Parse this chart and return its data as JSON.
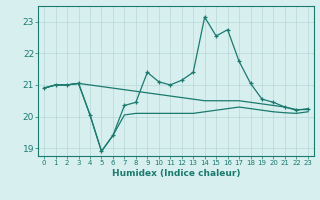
{
  "xlabel": "Humidex (Indice chaleur)",
  "x": [
    0,
    1,
    2,
    3,
    4,
    5,
    6,
    7,
    8,
    9,
    10,
    11,
    12,
    13,
    14,
    15,
    16,
    17,
    18,
    19,
    20,
    21,
    22,
    23
  ],
  "line_main": [
    20.9,
    21.0,
    21.0,
    21.05,
    20.05,
    18.9,
    19.4,
    20.35,
    20.45,
    21.4,
    21.1,
    21.0,
    21.15,
    21.4,
    23.15,
    22.55,
    22.75,
    21.75,
    21.05,
    20.55,
    20.45,
    20.3,
    20.2,
    20.25
  ],
  "line_upper": [
    20.9,
    21.0,
    21.0,
    21.05,
    21.0,
    20.95,
    20.9,
    20.85,
    20.8,
    20.75,
    20.7,
    20.65,
    20.6,
    20.55,
    20.5,
    20.5,
    20.5,
    20.5,
    20.45,
    20.4,
    20.35,
    20.3,
    20.22,
    20.22
  ],
  "line_lower": [
    20.9,
    21.0,
    21.0,
    21.05,
    20.05,
    18.9,
    19.4,
    20.05,
    20.1,
    20.1,
    20.1,
    20.1,
    20.1,
    20.1,
    20.15,
    20.2,
    20.25,
    20.3,
    20.25,
    20.2,
    20.15,
    20.12,
    20.1,
    20.15
  ],
  "bg_color": "#d8eff0",
  "grid_color": "#b8d8d8",
  "line_color": "#1a7a6e",
  "ylim": [
    18.75,
    23.5
  ],
  "yticks": [
    19,
    20,
    21,
    22,
    23
  ]
}
